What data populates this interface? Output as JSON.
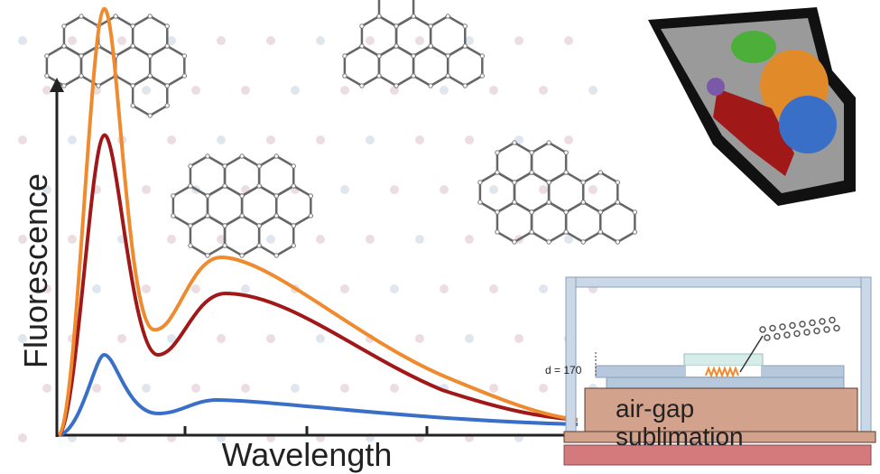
{
  "axes": {
    "y_label": "Fluorescence",
    "x_label": "Wavelength"
  },
  "apparatus": {
    "gap_label": "d = 170",
    "method": [
      "air-gap",
      "sublimation"
    ]
  }
}
